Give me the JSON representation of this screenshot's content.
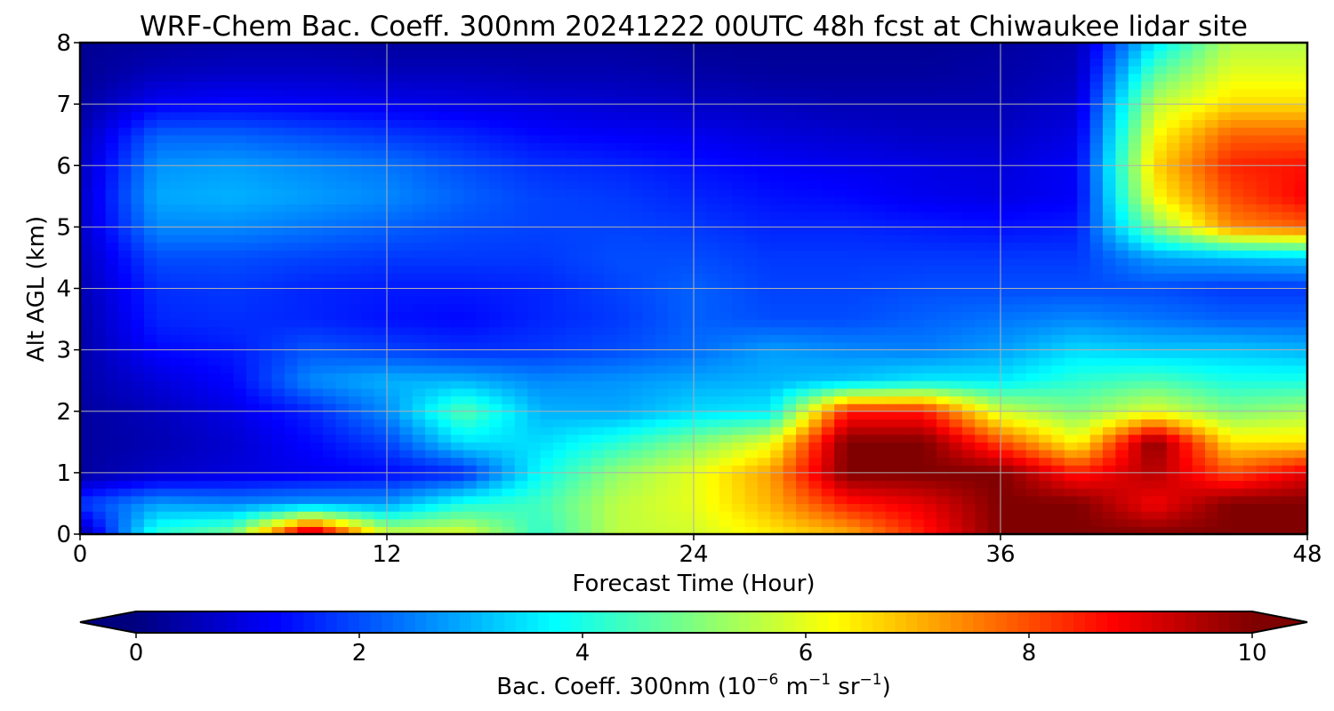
{
  "chart_data": {
    "type": "heatmap",
    "title": "WRF-Chem Bac. Coeff. 300nm  20241222 00UTC 48h fcst at Chiwaukee lidar site",
    "xlabel": "Forecast Time (Hour)",
    "ylabel": "Alt AGL (km)",
    "xlim": [
      0,
      48
    ],
    "ylim": [
      0,
      8
    ],
    "x_ticks": [
      0,
      12,
      24,
      36,
      48
    ],
    "y_ticks": [
      0,
      1,
      2,
      3,
      4,
      5,
      6,
      7,
      8
    ],
    "grid": true,
    "colormap": "jet",
    "colorbar": {
      "label_main": "Bac. Coeff. 300nm  (10",
      "label_exp1": "−6",
      "label_m": " m",
      "label_exp2": "−1",
      "label_sr": " sr",
      "label_exp3": "−1",
      "label_close": ")",
      "range": [
        0,
        10
      ],
      "ticks": [
        0,
        2,
        4,
        6,
        8,
        10
      ],
      "extend": "both",
      "under_color": "#00007f",
      "over_color": "#7f0000"
    },
    "x_hours": [
      0,
      3,
      6,
      9,
      12,
      15,
      18,
      21,
      24,
      27,
      30,
      33,
      36,
      39,
      42,
      45,
      48
    ],
    "y_km": [
      0,
      0.5,
      1,
      1.5,
      2,
      2.5,
      3,
      3.5,
      4,
      4.5,
      5,
      5.5,
      6,
      6.5,
      7,
      7.5,
      8
    ],
    "values": [
      [
        0.3,
        4.2,
        5.0,
        10.0,
        5.8,
        6.0,
        4.2,
        5.6,
        5.8,
        6.4,
        7.0,
        8.5,
        10,
        10,
        10,
        10,
        10
      ],
      [
        1.8,
        2.8,
        2.6,
        2.8,
        2.8,
        4.0,
        4.4,
        5.6,
        6.0,
        7.0,
        8.5,
        9.0,
        10,
        10,
        8.8,
        10,
        10
      ],
      [
        0.3,
        0.7,
        0.9,
        1.1,
        1.3,
        1.6,
        3.8,
        5.2,
        6.0,
        7.2,
        10,
        10,
        10,
        8.5,
        9.5,
        8.0,
        9.0
      ],
      [
        0.3,
        0.5,
        0.8,
        1.3,
        1.9,
        3.5,
        3.4,
        4.1,
        5.0,
        6.0,
        10,
        10,
        8.0,
        6.2,
        10,
        6.5,
        6.5
      ],
      [
        0.3,
        0.6,
        1.0,
        1.6,
        2.6,
        4.6,
        3.0,
        2.9,
        3.4,
        3.6,
        8.5,
        8.5,
        5.8,
        5.0,
        6.0,
        5.0,
        5.4
      ],
      [
        0.4,
        0.9,
        1.3,
        2.6,
        3.0,
        3.0,
        2.6,
        2.7,
        2.9,
        3.0,
        3.2,
        3.6,
        3.6,
        4.2,
        4.5,
        4.0,
        4.0
      ],
      [
        0.4,
        1.3,
        1.5,
        2.1,
        1.9,
        1.7,
        1.8,
        2.0,
        2.3,
        2.8,
        2.6,
        2.5,
        2.8,
        3.4,
        3.2,
        3.2,
        3.0
      ],
      [
        0.4,
        1.6,
        1.7,
        1.6,
        1.4,
        1.3,
        1.6,
        1.8,
        2.2,
        2.0,
        2.0,
        2.2,
        2.4,
        2.6,
        2.4,
        2.2,
        2.2
      ],
      [
        0.5,
        1.7,
        1.8,
        1.6,
        1.5,
        1.5,
        1.6,
        1.9,
        2.2,
        1.9,
        1.9,
        2.0,
        2.0,
        2.0,
        2.0,
        1.8,
        1.8
      ],
      [
        0.6,
        2.0,
        2.0,
        1.9,
        1.8,
        1.8,
        1.8,
        2.0,
        2.0,
        1.8,
        1.8,
        1.8,
        1.8,
        1.8,
        2.8,
        3.0,
        3.2
      ],
      [
        0.7,
        2.6,
        2.6,
        2.4,
        2.2,
        2.0,
        1.9,
        1.9,
        1.8,
        1.6,
        1.6,
        1.5,
        1.4,
        1.5,
        5.0,
        7.4,
        7.8
      ],
      [
        0.7,
        2.9,
        3.0,
        2.8,
        2.6,
        2.2,
        1.9,
        1.8,
        1.6,
        1.4,
        1.3,
        1.1,
        1.0,
        1.2,
        6.2,
        8.0,
        8.8
      ],
      [
        0.6,
        2.7,
        2.8,
        2.6,
        2.4,
        2.0,
        1.7,
        1.6,
        1.4,
        1.2,
        1.1,
        1.0,
        0.9,
        1.2,
        6.6,
        8.4,
        8.6
      ],
      [
        0.5,
        2.2,
        2.2,
        2.0,
        1.8,
        1.6,
        1.3,
        1.2,
        1.1,
        0.9,
        0.8,
        0.7,
        0.7,
        1.0,
        6.2,
        7.8,
        7.8
      ],
      [
        0.3,
        1.2,
        1.3,
        1.2,
        1.1,
        1.0,
        0.9,
        0.8,
        0.7,
        0.6,
        0.5,
        0.5,
        0.5,
        0.8,
        5.6,
        6.6,
        6.6
      ],
      [
        0.2,
        0.6,
        0.7,
        0.7,
        0.6,
        0.6,
        0.5,
        0.5,
        0.4,
        0.3,
        0.3,
        0.3,
        0.4,
        0.6,
        4.6,
        6.0,
        6.0
      ],
      [
        0.2,
        0.3,
        0.4,
        0.4,
        0.3,
        0.3,
        0.3,
        0.3,
        0.2,
        0.2,
        0.2,
        0.2,
        0.3,
        0.5,
        3.5,
        5.5,
        5.5
      ]
    ]
  }
}
